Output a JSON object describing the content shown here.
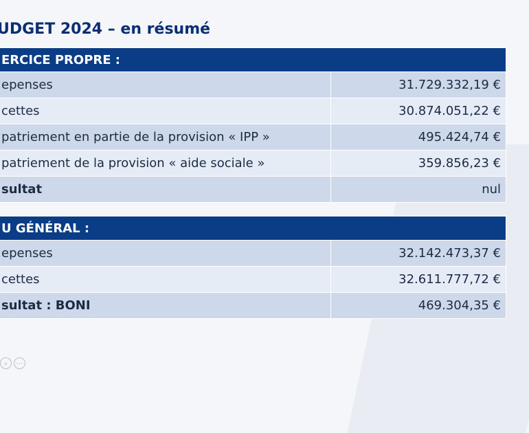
{
  "title": "UDGET 2024 – en résumé",
  "sections": [
    {
      "header": "ERCICE PROPRE :",
      "rows": [
        {
          "label": "epenses",
          "value": "31.729.332,19 €"
        },
        {
          "label": "cettes",
          "value": "30.874.051,22 €"
        },
        {
          "label": "patriement en partie de la provision « IPP »",
          "value": "495.424,74 €"
        },
        {
          "label": "patriement de la provision « aide sociale »",
          "value": "359.856,23 €"
        },
        {
          "label": "sultat",
          "value": "nul"
        }
      ]
    },
    {
      "header": "U GÉNÉRAL :",
      "rows": [
        {
          "label": "epenses",
          "value": "32.142.473,37 €"
        },
        {
          "label": "cettes",
          "value": "32.611.777,72 €"
        },
        {
          "label": "sultat : BONI",
          "value": "469.304,35 €"
        }
      ]
    }
  ],
  "controls": [
    {
      "icon": "zoom-icon",
      "glyph": "⌕"
    },
    {
      "icon": "more-icon",
      "glyph": "⋯"
    }
  ],
  "colors": {
    "header_bg": "#0a3d85",
    "title": "#0a2f73",
    "row_odd": "#cdd8ea",
    "row_even": "#e6ecf5"
  }
}
